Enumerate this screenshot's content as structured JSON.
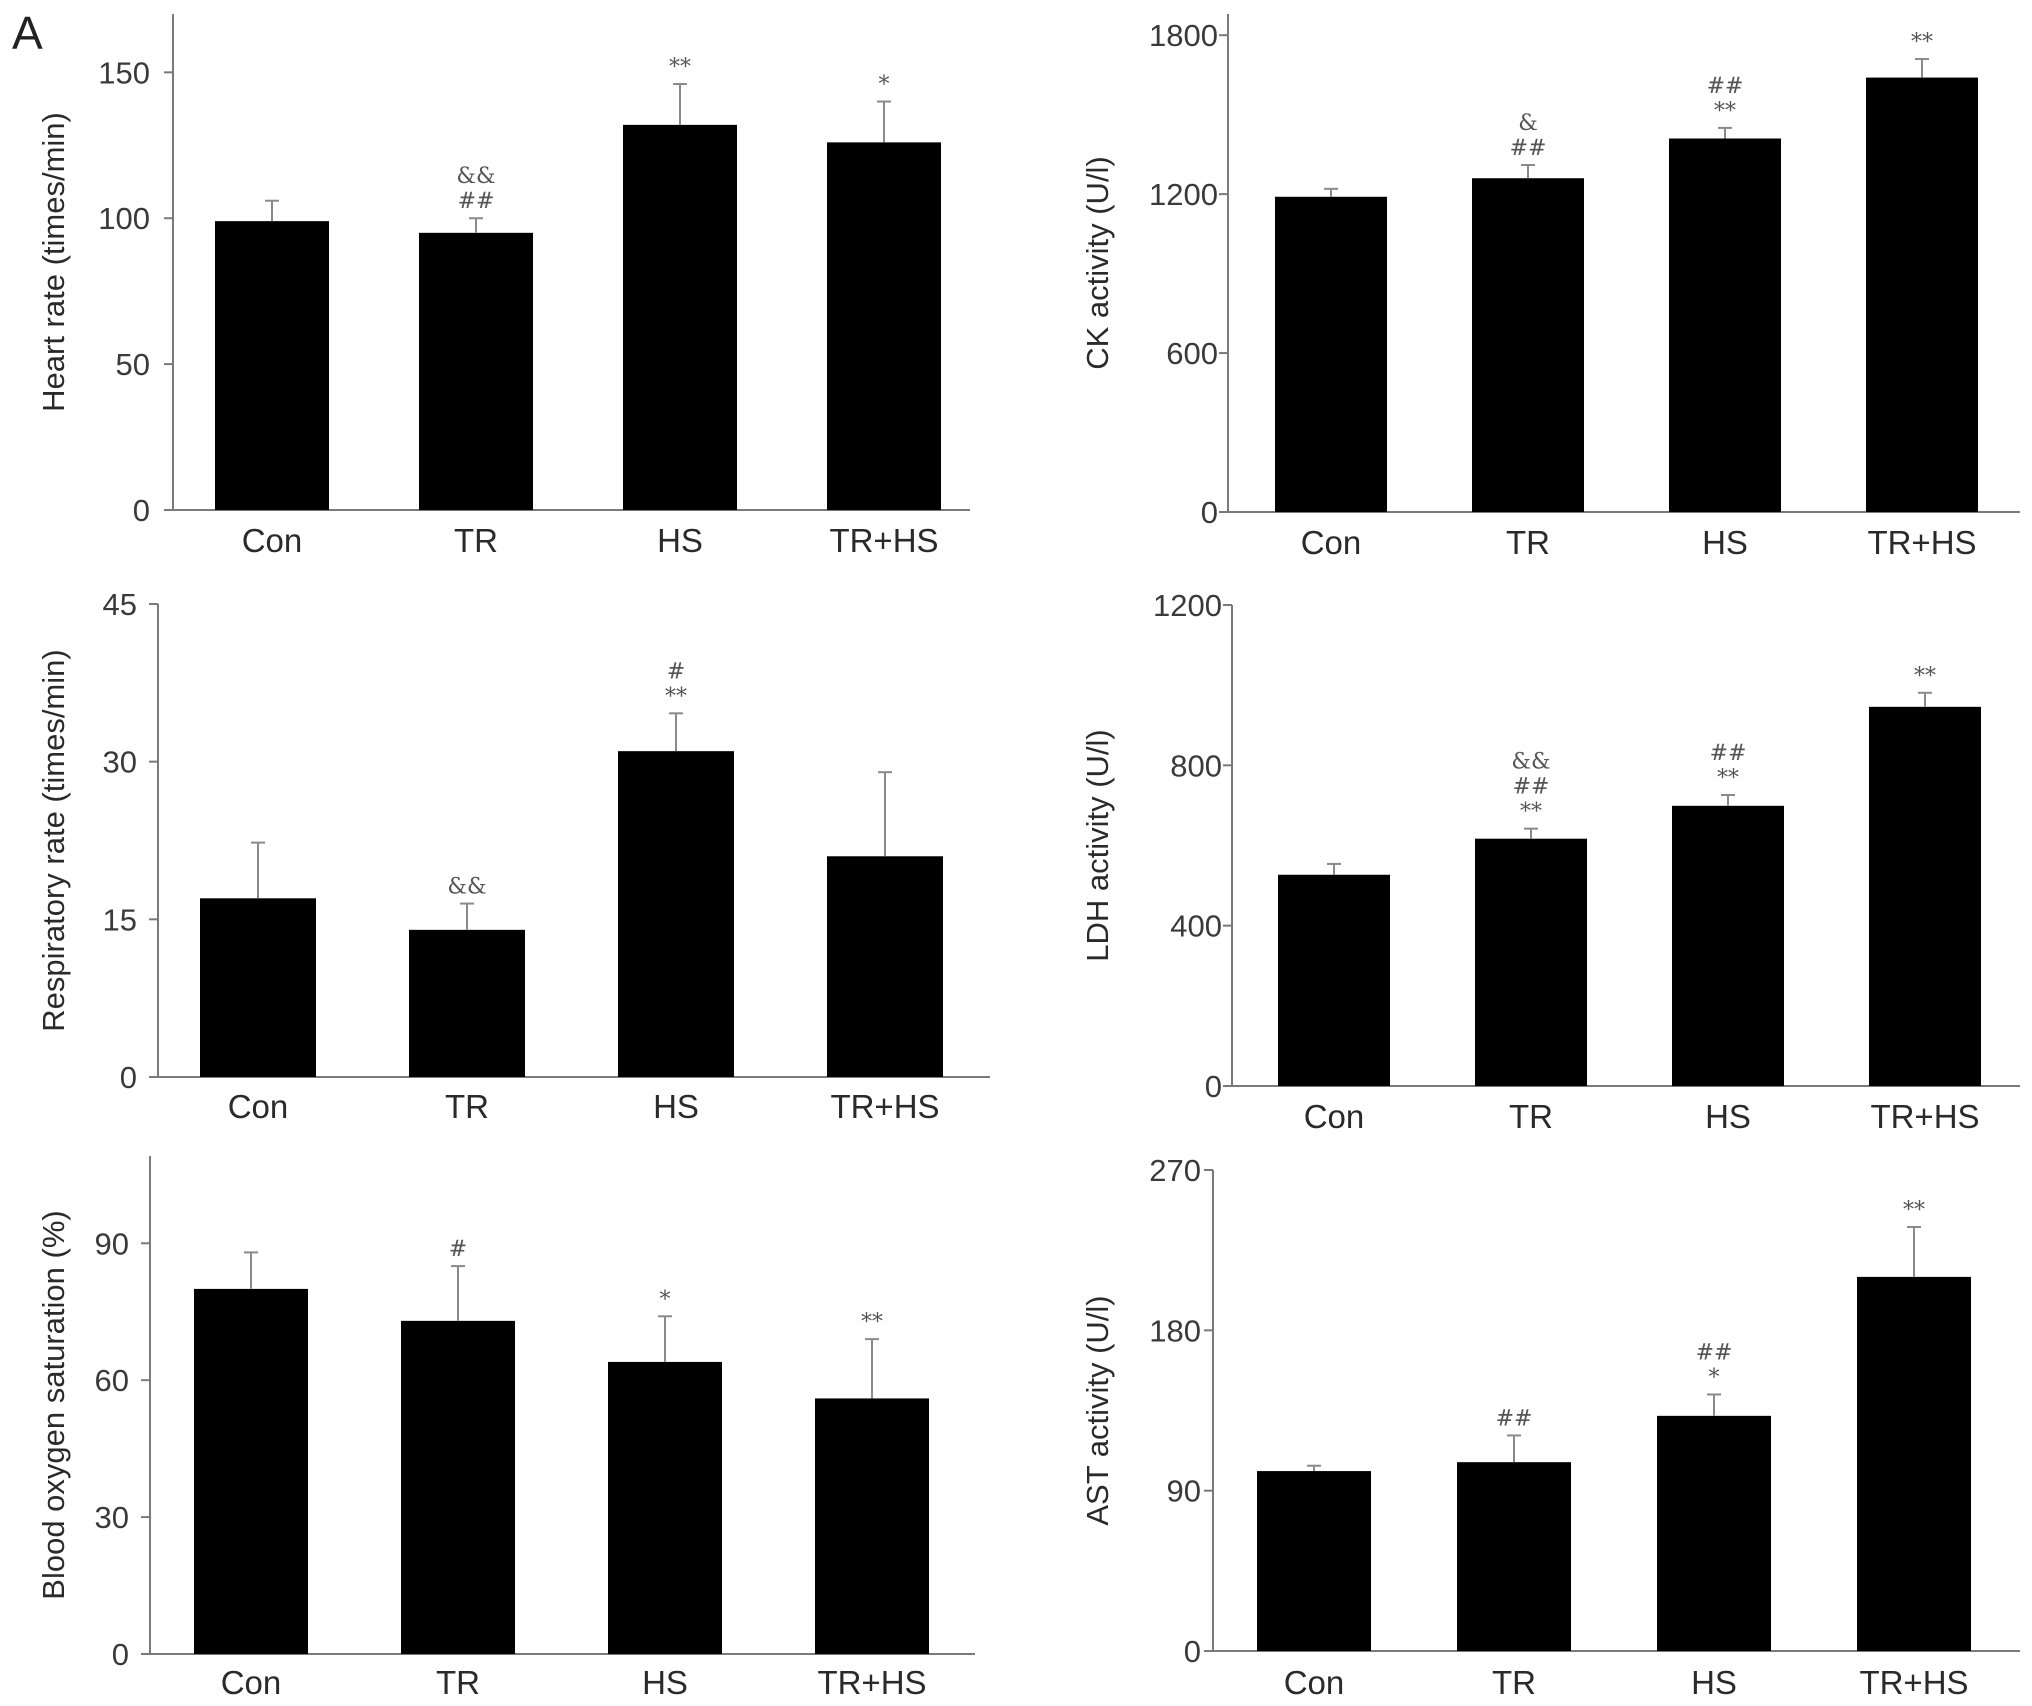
{
  "figure": {
    "panel_label": "A"
  },
  "chart_data": [
    {
      "id": "heart-rate",
      "type": "bar",
      "categories": [
        "Con",
        "TR",
        "HS",
        "TR+HS"
      ],
      "values": [
        99,
        95,
        132,
        126
      ],
      "errors": [
        7,
        5,
        14,
        14
      ],
      "annotations": [
        [],
        [
          "&&",
          "##"
        ],
        [
          "**"
        ],
        [
          "*"
        ]
      ],
      "ylabel": "Heart rate (times/min)",
      "ylim": [
        0,
        170
      ],
      "yticks": [
        0,
        50,
        100,
        150
      ],
      "grid": false
    },
    {
      "id": "ck-activity",
      "type": "bar",
      "categories": [
        "Con",
        "TR",
        "HS",
        "TR+HS"
      ],
      "values": [
        1190,
        1260,
        1410,
        1640
      ],
      "errors": [
        30,
        50,
        40,
        70
      ],
      "annotations": [
        [],
        [
          "&",
          "##"
        ],
        [
          "##",
          "**"
        ],
        [
          "**"
        ]
      ],
      "ylabel": "CK activity (U/l)",
      "ylim": [
        0,
        1880
      ],
      "yticks": [
        0,
        600,
        1200,
        1800
      ],
      "grid": false
    },
    {
      "id": "respiratory-rate",
      "type": "bar",
      "categories": [
        "Con",
        "TR",
        "HS",
        "TR+HS"
      ],
      "values": [
        17,
        14,
        31,
        21
      ],
      "errors": [
        5.3,
        2.5,
        3.6,
        8
      ],
      "annotations": [
        [],
        [
          "&&"
        ],
        [
          "#",
          "**"
        ],
        []
      ],
      "ylabel": "Respiratory rate (times/min)",
      "ylim": [
        0,
        45
      ],
      "yticks": [
        0,
        15,
        30,
        45
      ],
      "grid": false
    },
    {
      "id": "ldh-activity",
      "type": "bar",
      "categories": [
        "Con",
        "TR",
        "HS",
        "TR+HS"
      ],
      "values": [
        527,
        617,
        699,
        946
      ],
      "errors": [
        27,
        25,
        27,
        35
      ],
      "annotations": [
        [],
        [
          "&&",
          "##",
          "**"
        ],
        [
          "##",
          "**"
        ],
        [
          "**"
        ]
      ],
      "ylabel": "LDH activity (U/l)",
      "ylim": [
        0,
        1200
      ],
      "yticks": [
        0,
        400,
        800,
        1200
      ],
      "grid": false
    },
    {
      "id": "blood-oxygen-saturation",
      "type": "bar",
      "categories": [
        "Con",
        "TR",
        "HS",
        "TR+HS"
      ],
      "values": [
        80,
        73,
        64,
        56
      ],
      "errors": [
        8,
        12,
        10,
        13
      ],
      "annotations": [
        [],
        [
          "#"
        ],
        [
          "*"
        ],
        [
          "**"
        ]
      ],
      "ylabel": "Blood oxygen saturation (%)",
      "ylim": [
        0,
        110
      ],
      "yticks": [
        0,
        30,
        60,
        90
      ],
      "grid": false
    },
    {
      "id": "ast-activity",
      "type": "bar",
      "categories": [
        "Con",
        "TR",
        "HS",
        "TR+HS"
      ],
      "values": [
        101,
        106,
        132,
        210
      ],
      "errors": [
        3,
        15,
        12,
        28
      ],
      "annotations": [
        [],
        [
          "##"
        ],
        [
          "##",
          "*"
        ],
        [
          "**"
        ]
      ],
      "ylabel": "AST activity (U/l)",
      "ylim": [
        0,
        270
      ],
      "yticks": [
        0,
        90,
        180,
        270
      ],
      "grid": false
    }
  ]
}
